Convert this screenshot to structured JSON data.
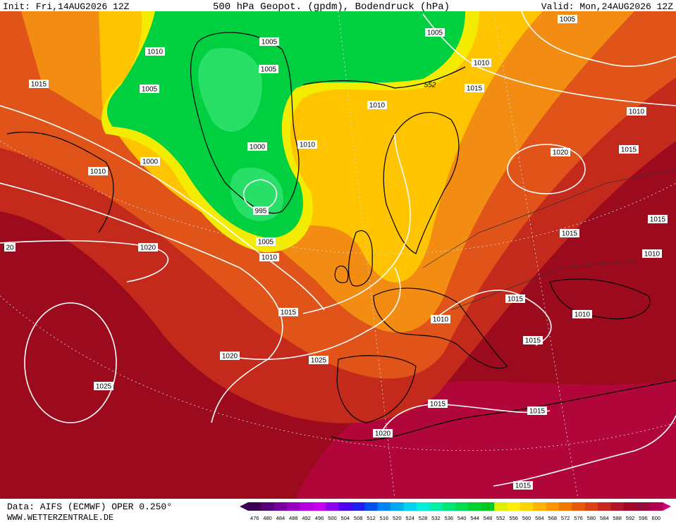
{
  "header": {
    "init": "Init: Fri,14AUG2026 12Z",
    "title": "500 hPa Geopot. (gpdm), Bodendruck (hPa)",
    "valid": "Valid: Mon,24AUG2026 12Z"
  },
  "footer": {
    "source": "Data: AIFS (ECMWF) OPER 0.250°",
    "website": "WWW.WETTERZENTRALE.DE"
  },
  "isobars": {
    "labels": [
      1010,
      1005,
      1005,
      1005,
      1015,
      1005,
      1005,
      1010,
      1015,
      1010,
      1010,
      1000,
      1010,
      1015,
      1020,
      1000,
      1010,
      995,
      1005,
      1015,
      1015,
      20,
      1020,
      1010,
      1010,
      1015,
      1015,
      1010,
      1010,
      1015,
      1020,
      1025,
      1025,
      1015,
      1015,
      1020,
      1015
    ]
  },
  "geopotential": {
    "labels": [
      552
    ]
  },
  "colorbar": {
    "values": [
      476,
      480,
      484,
      488,
      492,
      496,
      500,
      504,
      508,
      512,
      516,
      520,
      524,
      528,
      532,
      536,
      540,
      544,
      548,
      552,
      556,
      560,
      564,
      568,
      572,
      576,
      580,
      584,
      588,
      592,
      596,
      600
    ],
    "colors": [
      "#3c0050",
      "#5a0078",
      "#7800a0",
      "#9600be",
      "#b400dc",
      "#c800f0",
      "#8c00f0",
      "#5000f0",
      "#1e1ef0",
      "#0050f0",
      "#0082f0",
      "#00aaf0",
      "#00d2f0",
      "#00f0dc",
      "#00f0aa",
      "#00e678",
      "#00dc50",
      "#00d232",
      "#00c81e",
      "#dcf000",
      "#fff000",
      "#ffd200",
      "#ffb400",
      "#ff9600",
      "#f07800",
      "#e65a0a",
      "#dc4014",
      "#c8281e",
      "#b41428",
      "#a00a28",
      "#960a3c",
      "#b40050"
    ],
    "end_colors": [
      "#3c0050",
      "#d20078"
    ]
  }
}
